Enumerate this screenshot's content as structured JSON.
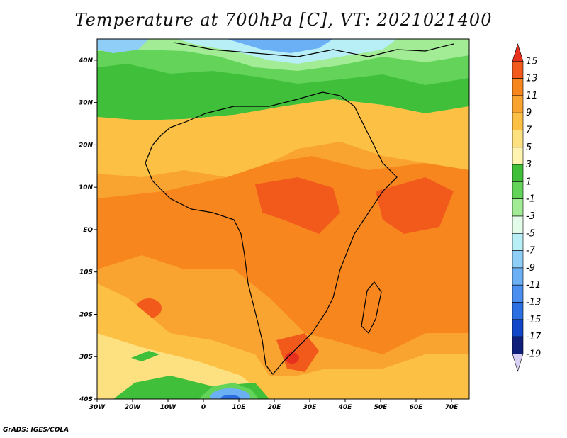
{
  "title": "Temperature at 700hPa [C], VT: 2021021400",
  "credit": "GrADS: IGES/COLA",
  "map": {
    "lon_range": [
      -30,
      75
    ],
    "lat_range": [
      -40,
      45
    ],
    "lat_ticks": [
      {
        "lat": 40,
        "label": "40N"
      },
      {
        "lat": 30,
        "label": "30N"
      },
      {
        "lat": 20,
        "label": "20N"
      },
      {
        "lat": 10,
        "label": "10N"
      },
      {
        "lat": 0,
        "label": "EQ"
      },
      {
        "lat": -10,
        "label": "10S"
      },
      {
        "lat": -20,
        "label": "20S"
      },
      {
        "lat": -30,
        "label": "30S"
      },
      {
        "lat": -40,
        "label": "40S"
      }
    ],
    "lon_ticks": [
      {
        "lon": -30,
        "label": "30W"
      },
      {
        "lon": -20,
        "label": "20W"
      },
      {
        "lon": -10,
        "label": "10W"
      },
      {
        "lon": 0,
        "label": "0"
      },
      {
        "lon": 10,
        "label": "10E"
      },
      {
        "lon": 20,
        "label": "20E"
      },
      {
        "lon": 30,
        "label": "30E"
      },
      {
        "lon": 40,
        "label": "40E"
      },
      {
        "lon": 50,
        "label": "50E"
      },
      {
        "lon": 60,
        "label": "60E"
      },
      {
        "lon": 70,
        "label": "70E"
      }
    ]
  },
  "colorbar": {
    "labels": [
      "15",
      "13",
      "11",
      "9",
      "7",
      "5",
      "3",
      "1",
      "-1",
      "-3",
      "-5",
      "-7",
      "-9",
      "-11",
      "-13",
      "-15",
      "-17",
      "-19"
    ],
    "colors": [
      "#e8301e",
      "#f25a1c",
      "#f7861e",
      "#f9a431",
      "#fbc044",
      "#fde080",
      "#fef3b0",
      "#3fbf3a",
      "#63d35a",
      "#a1ec95",
      "#e3fbe9",
      "#b8eef6",
      "#8fcef7",
      "#6bb0f5",
      "#4a8ff0",
      "#2c6fe3",
      "#1246c9",
      "#0f1f7a",
      "#d8d0f5"
    ]
  }
}
